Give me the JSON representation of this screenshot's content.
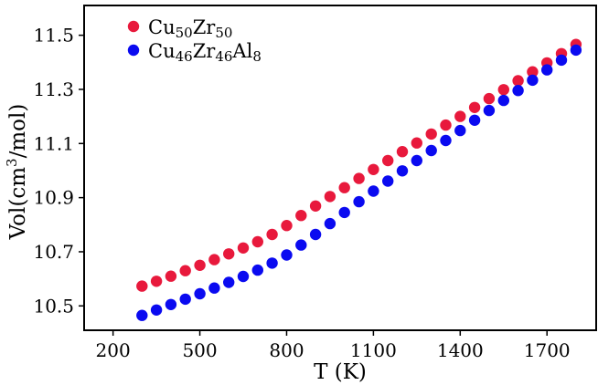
{
  "chart_data": {
    "type": "scatter",
    "xlabel": "T (K)",
    "ylabel": "Vol(cm³/mol)",
    "xlim": [
      100,
      1870
    ],
    "ylim": [
      10.41,
      11.61
    ],
    "xticks": [
      200,
      500,
      800,
      1100,
      1400,
      1700
    ],
    "yticks": [
      10.5,
      10.7,
      10.9,
      11.1,
      11.3,
      11.5
    ],
    "xtick_labels": [
      "200",
      "500",
      "800",
      "1100",
      "1400",
      "1700"
    ],
    "ytick_labels": [
      "10.5",
      "10.7",
      "10.9",
      "11.1",
      "11.3",
      "11.5"
    ],
    "grid": false,
    "legend_position": "top-left",
    "x": [
      300,
      350,
      400,
      450,
      500,
      550,
      600,
      650,
      700,
      750,
      800,
      850,
      900,
      950,
      1000,
      1050,
      1100,
      1150,
      1200,
      1250,
      1300,
      1350,
      1400,
      1450,
      1500,
      1550,
      1600,
      1650,
      1700,
      1750,
      1800
    ],
    "series": [
      {
        "name": "Cu50Zr50",
        "name_parts": [
          [
            "Cu",
            ""
          ],
          [
            "50",
            "sub"
          ],
          [
            "Zr",
            ""
          ],
          [
            "50",
            "sub"
          ]
        ],
        "color": "#e8193c",
        "values": [
          10.573,
          10.591,
          10.61,
          10.63,
          10.65,
          10.671,
          10.692,
          10.714,
          10.737,
          10.764,
          10.797,
          10.834,
          10.869,
          10.904,
          10.937,
          10.971,
          11.004,
          11.037,
          11.07,
          11.102,
          11.135,
          11.168,
          11.2,
          11.233,
          11.266,
          11.299,
          11.332,
          11.365,
          11.398,
          11.432,
          11.466
        ]
      },
      {
        "name": "Cu46Zr46Al8",
        "name_parts": [
          [
            "Cu",
            ""
          ],
          [
            "46",
            "sub"
          ],
          [
            "Zr",
            ""
          ],
          [
            "46",
            "sub"
          ],
          [
            "Al",
            ""
          ],
          [
            "8",
            "sub"
          ]
        ],
        "color": "#0a0af0",
        "values": [
          10.465,
          10.485,
          10.505,
          10.525,
          10.545,
          10.566,
          10.587,
          10.609,
          10.632,
          10.658,
          10.688,
          10.725,
          10.764,
          10.804,
          10.845,
          10.885,
          10.924,
          10.961,
          10.999,
          11.037,
          11.074,
          11.111,
          11.148,
          11.186,
          11.222,
          11.259,
          11.296,
          11.334,
          11.372,
          11.408,
          11.445
        ]
      }
    ]
  }
}
